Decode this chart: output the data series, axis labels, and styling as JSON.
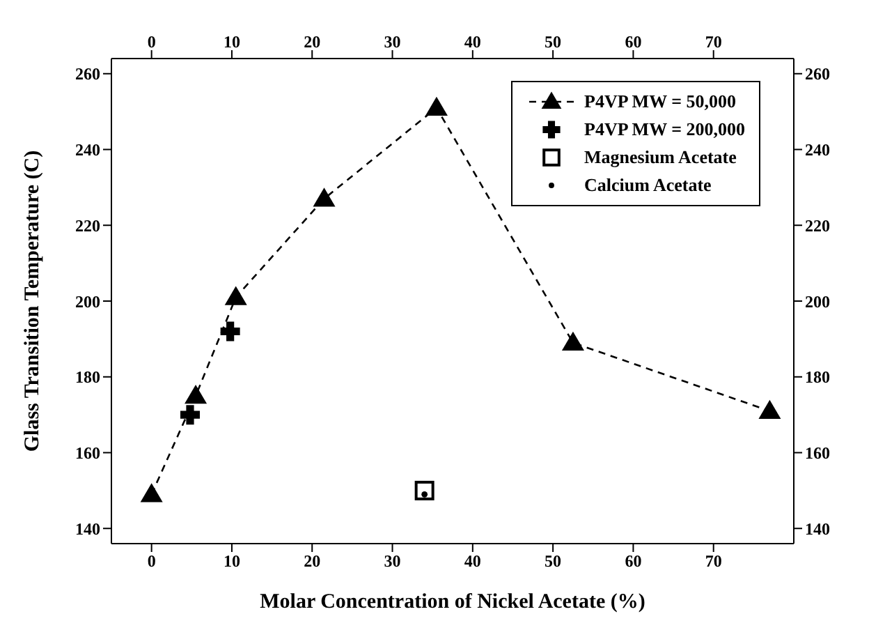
{
  "chart_data": {
    "type": "scatter",
    "xlabel": "Molar Concentration of Nickel Acetate (%)",
    "ylabel": "Glass Transition Temperature (C)",
    "xlim": [
      -5,
      80
    ],
    "xticks": [
      0,
      10,
      20,
      30,
      40,
      50,
      60,
      70
    ],
    "x2lim": [
      -5,
      80
    ],
    "x2ticks": [
      0,
      10,
      20,
      30,
      40,
      50,
      60,
      70
    ],
    "ylim": [
      136,
      264
    ],
    "yticks": [
      140,
      160,
      180,
      200,
      220,
      240,
      260
    ],
    "y2lim": [
      136,
      264
    ],
    "y2ticks": [
      140,
      160,
      180,
      200,
      220,
      240,
      260
    ],
    "grid": false,
    "legend": "top right",
    "series": [
      {
        "name": "P4VP MW = 50,000",
        "type": "line",
        "marker": "triangle",
        "line_style": "dashed",
        "color": "#000000",
        "x": [
          0,
          5.5,
          10.5,
          21.5,
          35.5,
          52.5,
          77
        ],
        "values": [
          149,
          175,
          201,
          227,
          251,
          189,
          171
        ]
      },
      {
        "name": "P4VP MW = 200,000",
        "marker": "cross",
        "color": "#000000",
        "x": [
          4.8,
          9.8
        ],
        "values": [
          170,
          192
        ]
      },
      {
        "name": "Magnesium Acetate",
        "marker": "square",
        "color": "#000000",
        "x": [
          34
        ],
        "values": [
          150
        ]
      },
      {
        "name": "Calcium Acetate",
        "marker": "circle",
        "color": "#000000",
        "x": [
          34
        ],
        "values": [
          149
        ]
      }
    ]
  }
}
